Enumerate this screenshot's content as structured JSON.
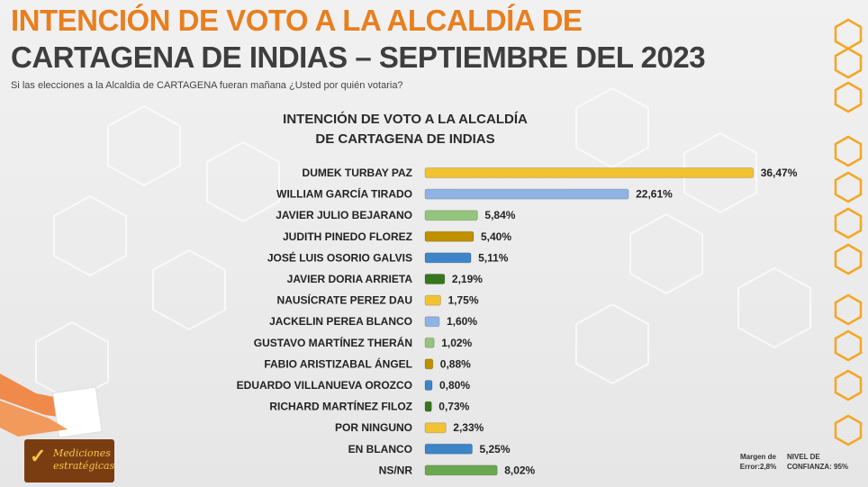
{
  "header": {
    "title_line1": "INTENCIÓN DE VOTO A LA ALCALDÍA DE",
    "title_line2": "CARTAGENA DE INDIAS – SEPTIEMBRE DEL 2023",
    "question": "Si las elecciones a la  Alcaldia de CARTAGENA fueran mañana ¿Usted por quién votaria?"
  },
  "chart_data": {
    "type": "bar",
    "orientation": "horizontal",
    "title": [
      "INTENCIÓN DE VOTO A LA ALCALDÍA",
      "DE CARTAGENA DE INDIAS"
    ],
    "categories": [
      "DUMEK TURBAY PAZ",
      "WILLIAM GARCÍA TIRADO",
      "JAVIER JULIO BEJARANO",
      "JUDITH PINEDO FLOREZ",
      "JOSÉ LUIS OSORIO GALVIS",
      "JAVIER DORIA ARRIETA",
      "NAUSÍCRATE PEREZ DAU",
      "JACKELIN PEREA BLANCO",
      "GUSTAVO MARTÍNEZ THERÁN",
      "FABIO ARISTIZABAL ÁNGEL",
      "EDUARDO VILLANUEVA OROZCO",
      "RICHARD MARTÍNEZ FILOZ",
      "POR NINGUNO",
      "EN BLANCO",
      "NS/NR"
    ],
    "values": [
      36.47,
      22.61,
      5.84,
      5.4,
      5.11,
      2.19,
      1.75,
      1.6,
      1.02,
      0.88,
      0.8,
      0.73,
      2.33,
      5.25,
      8.02
    ],
    "value_labels": [
      "36,47%",
      "22,61%",
      "5,84%",
      "5,40%",
      "5,11%",
      "2,19%",
      "1,75%",
      "1,60%",
      "1,02%",
      "0,88%",
      "0,80%",
      "0,73%",
      "2,33%",
      "5,25%",
      "8,02%"
    ],
    "colors": [
      "#f1c232",
      "#8fb4e3",
      "#93c47d",
      "#bf9000",
      "#3d85c6",
      "#38761d",
      "#f1c232",
      "#8fb4e3",
      "#93c47d",
      "#bf9000",
      "#3d85c6",
      "#38761d",
      "#f1c232",
      "#3d85c6",
      "#6aa84f"
    ],
    "xlim": [
      0,
      37
    ],
    "grid": false,
    "legend": "none"
  },
  "logo": {
    "line1": "Mediciones",
    "line2": "estratégicas",
    "check": "✓"
  },
  "footer": {
    "margin_label": "Margen de",
    "margin_value": "Error:2,8%",
    "confidence_label": "NIVEL DE",
    "confidence_value": "CONFIANZA: 95%"
  },
  "colors": {
    "title_orange": "#e87f1f",
    "title_dark": "#3e3e3e",
    "hex_orange": "#f5a623"
  }
}
